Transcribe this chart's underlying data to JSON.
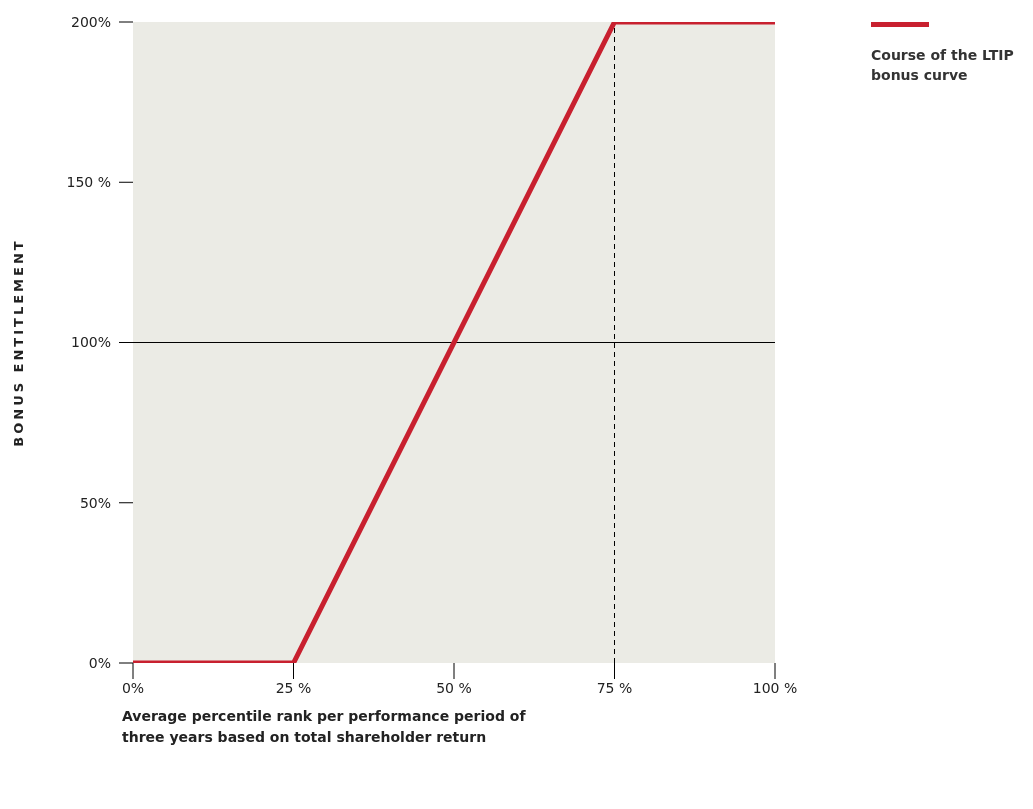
{
  "chart_data": {
    "type": "line",
    "xlabel": "Average percentile rank per performance period of three years based on total shareholder return",
    "ylabel": "BONUS ENTITLEMENT",
    "x": [
      0,
      25,
      75,
      100
    ],
    "series": [
      {
        "name": "Course of the LTIP bonus curve",
        "color": "#c8202f",
        "values": [
          0,
          0,
          200,
          200
        ]
      }
    ],
    "xlim": [
      0,
      100
    ],
    "xticks": [
      {
        "value": 0,
        "label": "0%"
      },
      {
        "value": 25,
        "label": "25 %"
      },
      {
        "value": 50,
        "label": "50 %"
      },
      {
        "value": 75,
        "label": "75 %"
      },
      {
        "value": 100,
        "label": "100 %"
      }
    ],
    "ylim": [
      0,
      200
    ],
    "yticks": [
      {
        "value": 0,
        "label": "0%"
      },
      {
        "value": 50,
        "label": "50%"
      },
      {
        "value": 100,
        "label": "100%"
      },
      {
        "value": 150,
        "label": "150 %"
      },
      {
        "value": 200,
        "label": "200%"
      }
    ],
    "ref_lines": [
      {
        "axis": "y",
        "value": 100,
        "color": "#000000",
        "line_style": "solid"
      },
      {
        "axis": "x",
        "value": 75,
        "color": "#000000",
        "line_style": "dashed"
      }
    ],
    "grid": false,
    "legend": "top right",
    "marker": "none",
    "line_style": "solid"
  }
}
